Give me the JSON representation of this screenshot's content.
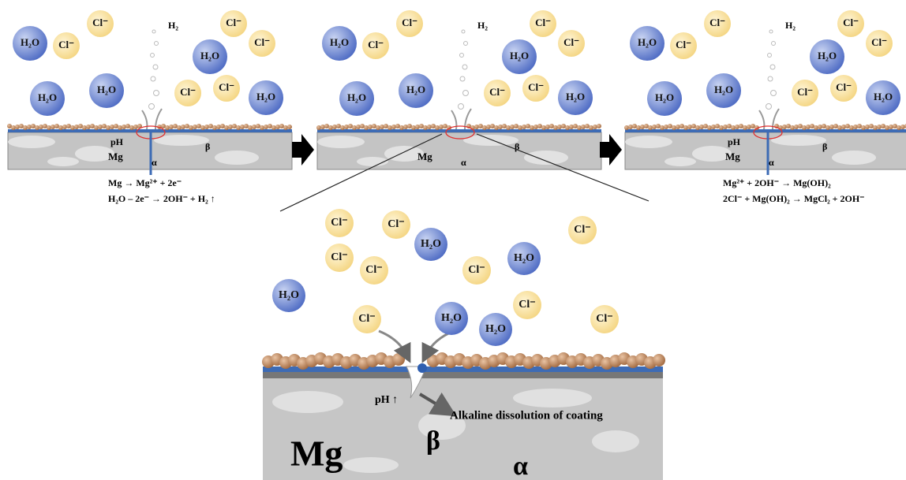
{
  "panels": [
    {
      "ions": [
        "H₂O",
        "Cl⁻",
        "Cl⁻",
        "Cl⁻",
        "H₂O",
        "Cl⁻",
        "H₂O",
        "H₂O",
        "Cl⁻",
        "Cl⁻",
        "H₂O"
      ],
      "gas": "H₂",
      "ph": "pH",
      "metal": "Mg",
      "phase_alpha": "α",
      "phase_beta": "β",
      "equations": [
        "Mg → Mg²⁺ + 2e⁻",
        "H₂O – 2e⁻ → 2OH⁻ + H₂ ↑"
      ]
    },
    {
      "ions": [
        "H₂O",
        "Cl⁻",
        "Cl⁻",
        "Cl⁻",
        "H₂O",
        "Cl⁻",
        "H₂O",
        "H₂O",
        "Cl⁻",
        "Cl⁻",
        "H₂O"
      ],
      "gas": "H₂",
      "metal": "Mg",
      "phase_alpha": "α",
      "phase_beta": "β"
    },
    {
      "ions": [
        "H₂O",
        "Cl⁻",
        "Cl⁻",
        "Cl⁻",
        "H₂O",
        "Cl⁻",
        "H₂O",
        "H₂O",
        "Cl⁻",
        "Cl⁻",
        "H₂O"
      ],
      "gas": "H₂",
      "ph": "pH",
      "metal": "Mg",
      "phase_alpha": "α",
      "phase_beta": "β",
      "equations": [
        "Mg²⁺ + 2OH⁻ → Mg(OH)₂",
        "2Cl⁻ + Mg(OH)₂ → MgCl₂ + 2OH⁻"
      ]
    }
  ],
  "zoom": {
    "ions": [
      "Cl⁻",
      "Cl⁻",
      "H₂O",
      "Cl⁻",
      "Cl⁻",
      "Cl⁻",
      "H₂O",
      "Cl⁻",
      "H₂O",
      "Cl⁻",
      "H₂O",
      "Cl⁻",
      "H₂O",
      "Cl⁻"
    ],
    "ph": "pH ↑",
    "annotation": "Alkaline dissolution of coating",
    "metal": "Mg",
    "phase_beta": "β",
    "phase_alpha": "α"
  }
}
